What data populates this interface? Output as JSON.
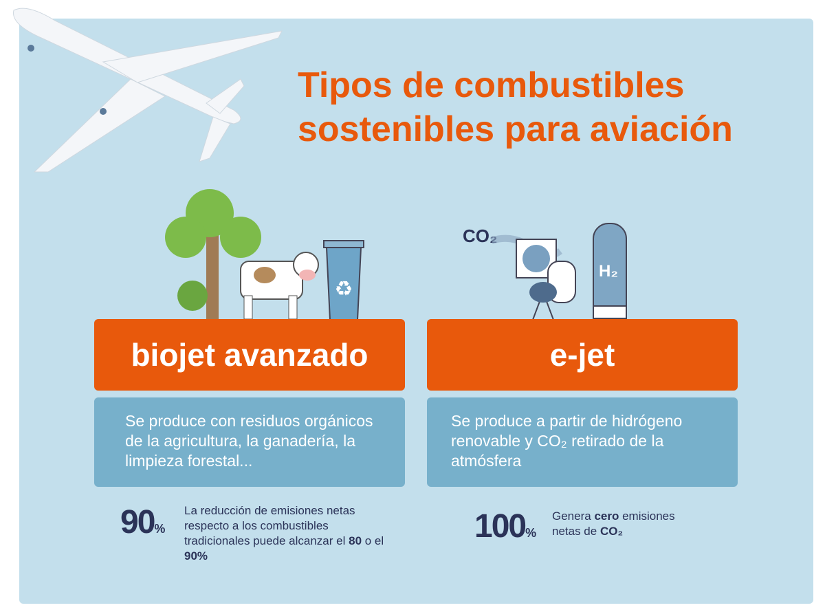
{
  "title_lines": [
    "Tipos de combustibles",
    "sostenibles para aviación"
  ],
  "cards": [
    {
      "label": "biojet avanzado",
      "description": "Se produce con residuos orgánicos de la agricultura, la ganadería, la limpieza forestal...",
      "stat_value": "90",
      "stat_unit": "%",
      "stat_note": "La reducción de emisiones netas respecto a los combustibles tradicionales puede alcanzar el ",
      "stat_note_bold1": "80",
      "stat_note_mid": " o el ",
      "stat_note_bold2": "90%"
    },
    {
      "label": "e-jet",
      "description": "Se produce a partir de hidrógeno renovable y CO₂ retirado de la atmósfera",
      "stat_value": "100",
      "stat_unit": "%",
      "stat_note_pre": "Genera ",
      "stat_note_bold": "cero",
      "stat_note_post": " emisiones netas de ",
      "stat_note_bold2": "CO₂"
    }
  ],
  "illustration_labels": {
    "co2": "CO₂",
    "h2": "H₂"
  },
  "colors": {
    "accent": "#e8590c",
    "background": "#c3dfec",
    "card": "#77b0cb",
    "dark_text": "#2b3358"
  }
}
